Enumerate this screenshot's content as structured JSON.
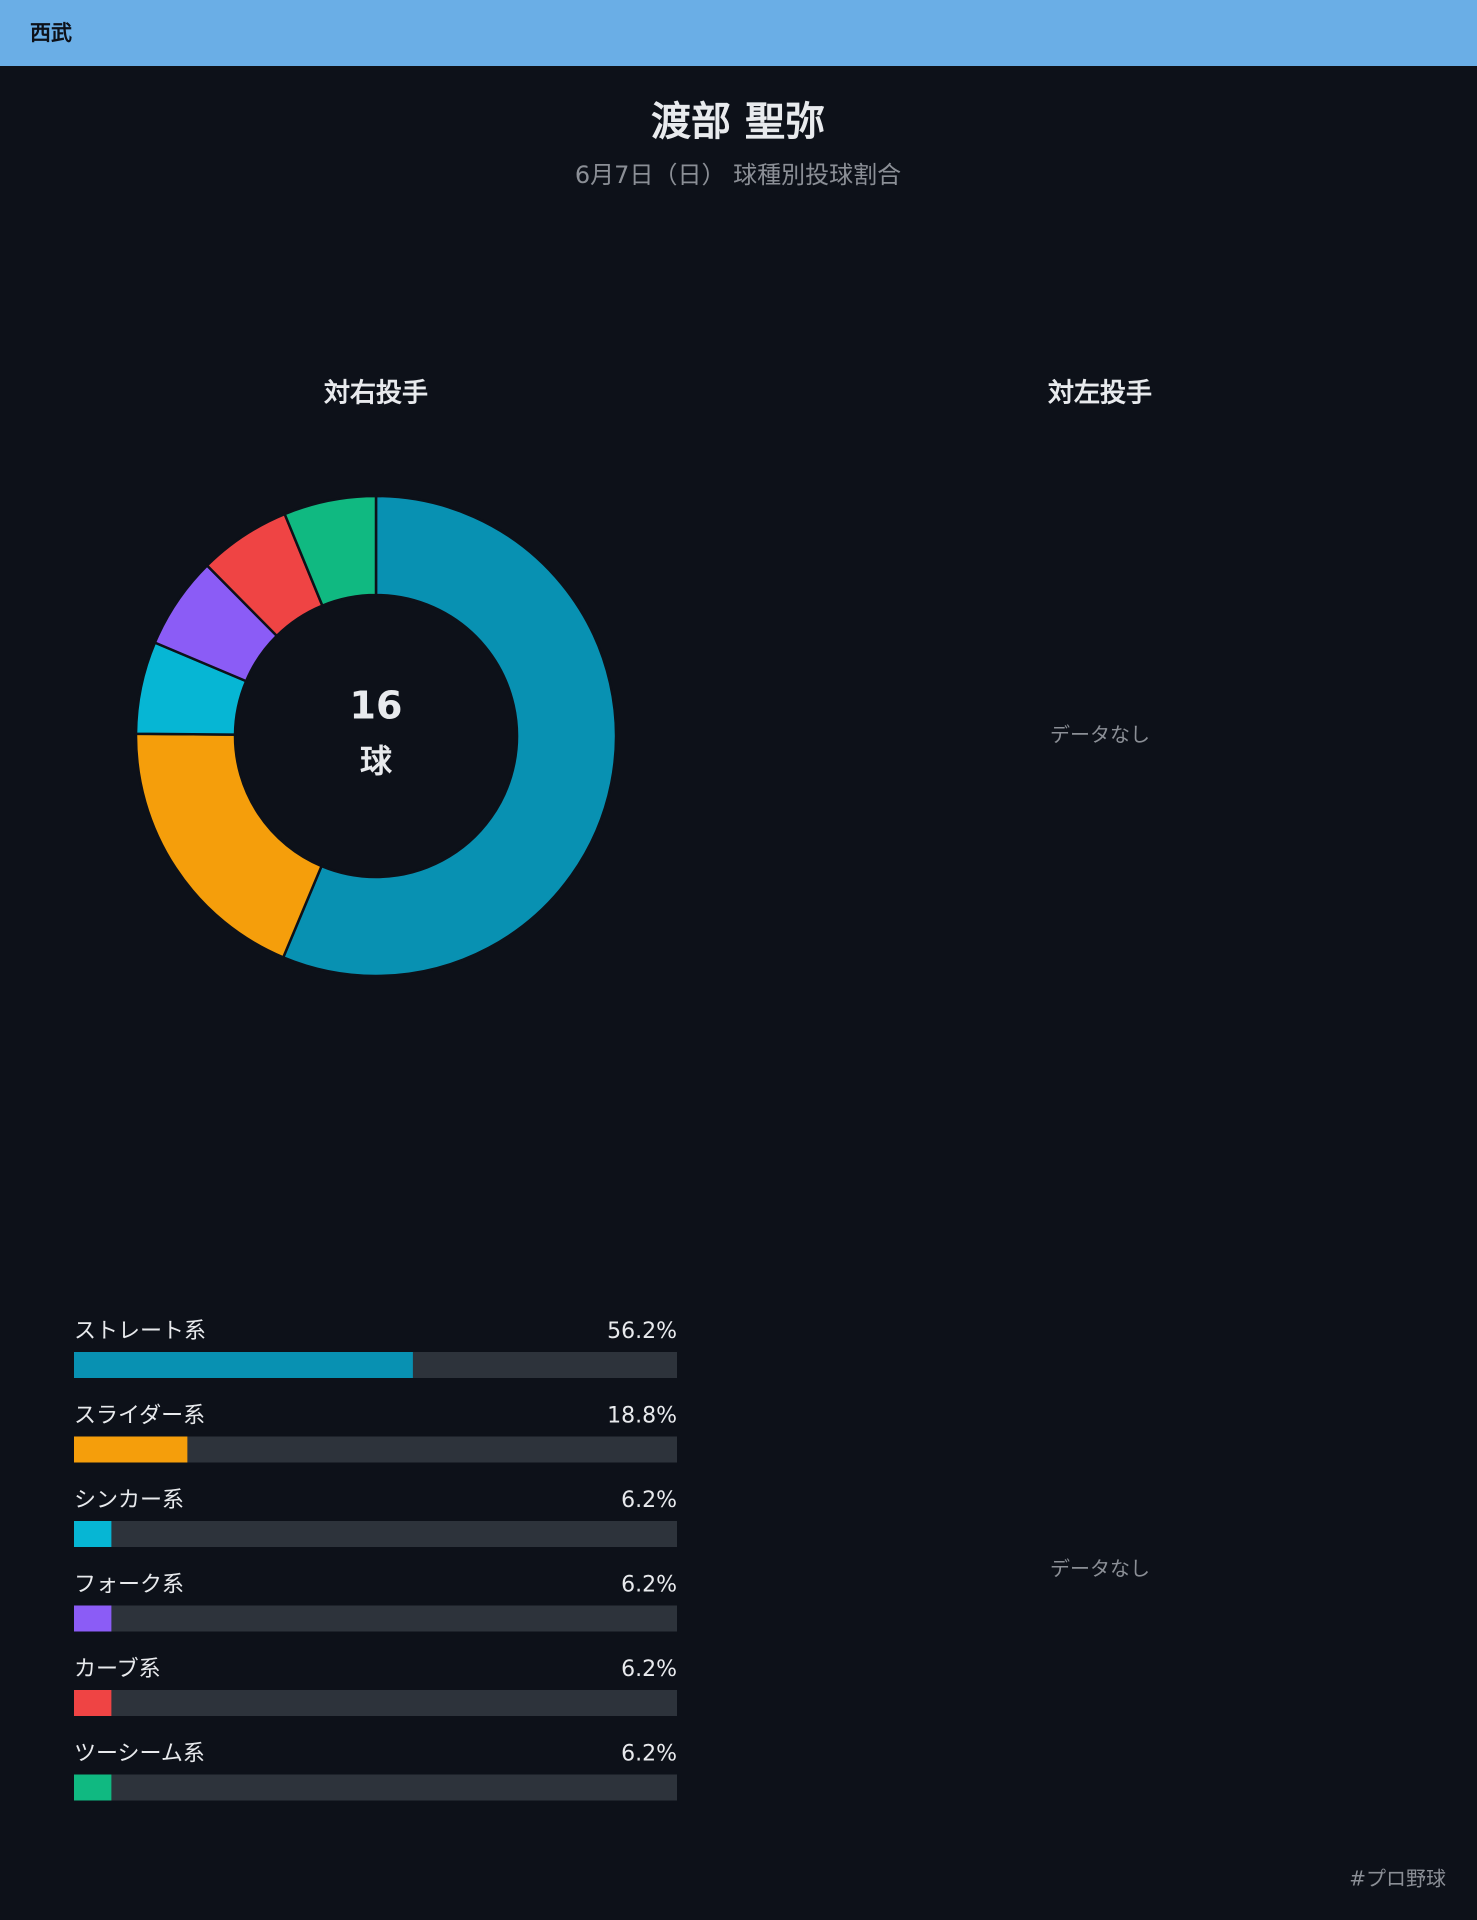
{
  "header": {
    "team": "西武"
  },
  "title": "渡部 聖弥",
  "subtitle": "6月7日（日） 球種別投球割合",
  "chart_data": [
    {
      "type": "pie",
      "title": "対右投手",
      "total": 16,
      "total_unit": "球",
      "categories": [
        "ストレート系",
        "スライダー系",
        "シンカー系",
        "フォーク系",
        "カーブ系",
        "ツーシーム系"
      ],
      "values": [
        56.2,
        18.8,
        6.2,
        6.2,
        6.2,
        6.2
      ],
      "colors": [
        "#0891b2",
        "#f59e0b",
        "#06b6d4",
        "#8b5cf6",
        "#ef4444",
        "#10b981"
      ]
    },
    {
      "type": "pie",
      "title": "対左投手",
      "empty_label": "データなし"
    },
    {
      "type": "bar",
      "categories": [
        "ストレート系",
        "スライダー系",
        "シンカー系",
        "フォーク系",
        "カーブ系",
        "ツーシーム系"
      ],
      "values": [
        56.2,
        18.8,
        6.2,
        6.2,
        6.2,
        6.2
      ],
      "value_labels": [
        "56.2%",
        "18.8%",
        "6.2%",
        "6.2%",
        "6.2%",
        "6.2%"
      ],
      "colors": [
        "#0891b2",
        "#f59e0b",
        "#06b6d4",
        "#8b5cf6",
        "#ef4444",
        "#10b981"
      ],
      "xlim": [
        0,
        100
      ]
    },
    {
      "type": "bar",
      "empty_label": "データなし"
    }
  ],
  "hashtag": "#プロ野球"
}
